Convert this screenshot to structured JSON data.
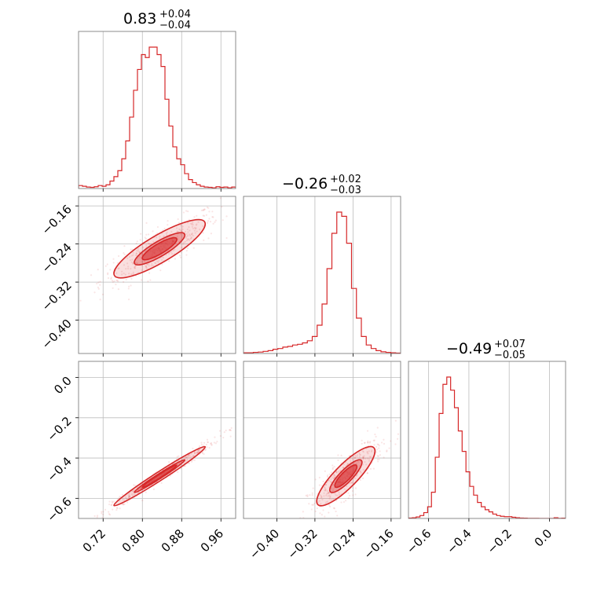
{
  "chart_data": {
    "type": "corner",
    "accent_color": "#d62728",
    "grid": true,
    "parameters": [
      {
        "range": [
          0.67,
          0.99
        ],
        "ticks": [
          0.72,
          0.8,
          0.88,
          0.96
        ],
        "tick_labels": [
          "0.72",
          "0.80",
          "0.88",
          "0.96"
        ],
        "title": {
          "value": "0.83",
          "plus": "+0.04",
          "minus": "−0.04"
        }
      },
      {
        "range": [
          -0.47,
          -0.14
        ],
        "ticks": [
          -0.4,
          -0.32,
          -0.24,
          -0.16
        ],
        "tick_labels": [
          "−0.40",
          "−0.32",
          "−0.24",
          "−0.16"
        ],
        "title": {
          "value": "−0.26",
          "plus": "+0.02",
          "minus": "−0.03"
        }
      },
      {
        "range": [
          -0.7,
          0.08
        ],
        "ticks": [
          -0.6,
          -0.4,
          -0.2,
          0.0
        ],
        "tick_labels": [
          "−0.6",
          "−0.4",
          "−0.2",
          "0.0"
        ],
        "title": {
          "value": "−0.49",
          "plus": "+0.07",
          "minus": "−0.05"
        }
      }
    ],
    "histograms": [
      {
        "param": 0,
        "values": [
          0.02,
          0.015,
          0.01,
          0.008,
          0.012,
          0.02,
          0.015,
          0.025,
          0.05,
          0.08,
          0.12,
          0.2,
          0.32,
          0.48,
          0.66,
          0.8,
          0.9,
          0.88,
          0.95,
          0.95,
          0.9,
          0.82,
          0.6,
          0.42,
          0.28,
          0.2,
          0.16,
          0.1,
          0.06,
          0.04,
          0.025,
          0.015,
          0.01,
          0.008,
          0.005,
          0.012,
          0.008,
          0.01,
          0.005,
          0.01
        ]
      },
      {
        "param": 1,
        "values": [
          0.005,
          0.005,
          0.008,
          0.01,
          0.015,
          0.02,
          0.03,
          0.035,
          0.045,
          0.05,
          0.06,
          0.065,
          0.075,
          0.09,
          0.12,
          0.2,
          0.35,
          0.6,
          0.85,
          1.0,
          0.97,
          0.78,
          0.46,
          0.25,
          0.12,
          0.06,
          0.035,
          0.02,
          0.012,
          0.008,
          0.005,
          0.003
        ]
      },
      {
        "param": 2,
        "values": [
          0.003,
          0.005,
          0.01,
          0.02,
          0.04,
          0.08,
          0.18,
          0.42,
          0.72,
          0.92,
          0.97,
          0.88,
          0.76,
          0.6,
          0.46,
          0.32,
          0.22,
          0.16,
          0.11,
          0.08,
          0.06,
          0.045,
          0.03,
          0.02,
          0.015,
          0.012,
          0.012,
          0.008,
          0.005,
          0.003,
          0.002,
          0.001,
          0.001,
          0.001,
          0.0,
          0.0,
          0.0,
          0.0,
          0.005,
          0.001,
          0.002
        ]
      }
    ],
    "pairs": [
      {
        "x_param": 0,
        "y_param": 1,
        "center": [
          0.835,
          -0.25
        ],
        "sigma": [
          0.038,
          0.025
        ],
        "rho": 0.85,
        "contour_levels": [
          0.95,
          0.6,
          0.35
        ]
      },
      {
        "x_param": 0,
        "y_param": 2,
        "center": [
          0.835,
          -0.49
        ],
        "sigma": [
          0.038,
          0.06
        ],
        "rho": 0.985,
        "contour_levels": [
          0.95,
          0.6,
          0.35
        ]
      },
      {
        "x_param": 1,
        "y_param": 2,
        "center": [
          -0.255,
          -0.49
        ],
        "sigma": [
          0.025,
          0.06
        ],
        "rho": 0.85,
        "contour_levels": [
          0.95,
          0.6,
          0.35
        ]
      }
    ]
  }
}
